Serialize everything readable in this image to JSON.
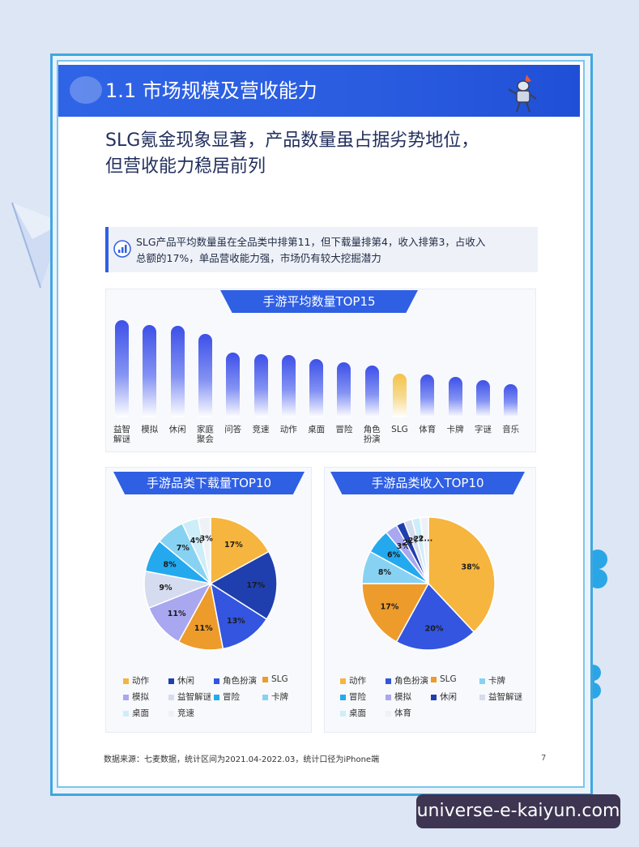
{
  "header": {
    "title": "1.1 市场规模及营收能力"
  },
  "headline": {
    "line1": "SLG氪金现象显著，产品数量虽占据劣势地位，",
    "line2": "但营收能力稳居前列"
  },
  "callout": {
    "line1": "SLG产品平均数量虽在全品类中排第11，但下载量排第4，收入排第3，占收入",
    "line2": "总额的17%，单品营收能力强，市场仍有较大挖掘潜力"
  },
  "colors": {
    "primary": "#2f5fe3",
    "highlight": "#f3c248"
  },
  "chart_data": [
    {
      "type": "bar",
      "title": "手游平均数量TOP15",
      "categories": [
        "益智\n解谜",
        "模拟",
        "休闲",
        "家庭\n聚会",
        "问答",
        "竞速",
        "动作",
        "桌面",
        "冒险",
        "角色\n扮演",
        "SLG",
        "体育",
        "卡牌",
        "字谜",
        "音乐"
      ],
      "values": [
        100,
        95,
        94,
        86,
        67,
        65,
        64,
        60,
        57,
        53,
        45,
        44,
        42,
        38,
        34
      ],
      "highlight": "SLG"
    },
    {
      "type": "pie",
      "title": "手游品类下载量TOP10",
      "slices": [
        {
          "name": "动作",
          "value": 17,
          "label": "17%",
          "color": "#f5b53e"
        },
        {
          "name": "休闲",
          "value": 17,
          "label": "17%",
          "color": "#1f3fae"
        },
        {
          "name": "角色扮演",
          "value": 13,
          "label": "13%",
          "color": "#3355e0"
        },
        {
          "name": "SLG",
          "value": 11,
          "label": "11%",
          "color": "#ed9b2b"
        },
        {
          "name": "模拟",
          "value": 11,
          "label": "11%",
          "color": "#a9a7f0"
        },
        {
          "name": "益智解谜",
          "value": 9,
          "label": "9%",
          "color": "#d5dcef"
        },
        {
          "name": "冒险",
          "value": 8,
          "label": "8%",
          "color": "#25a9ee"
        },
        {
          "name": "卡牌",
          "value": 7,
          "label": "7%",
          "color": "#87d2f3"
        },
        {
          "name": "桌面",
          "value": 4,
          "label": "4%",
          "color": "#cdeef9"
        },
        {
          "name": "竞速",
          "value": 3,
          "label": "3%",
          "color": "#eef1f6"
        }
      ]
    },
    {
      "type": "pie",
      "title": "手游品类收入TOP10",
      "slices": [
        {
          "name": "动作",
          "value": 38,
          "label": "38%",
          "color": "#f5b53e"
        },
        {
          "name": "角色扮演",
          "value": 20,
          "label": "20%",
          "color": "#3355e0"
        },
        {
          "name": "SLG",
          "value": 17,
          "label": "17%",
          "color": "#ed9b2b"
        },
        {
          "name": "卡牌",
          "value": 8,
          "label": "8%",
          "color": "#87d2f3"
        },
        {
          "name": "冒险",
          "value": 6,
          "label": "6%",
          "color": "#25a9ee"
        },
        {
          "name": "模拟",
          "value": 3,
          "label": "3%",
          "color": "#a9a7f0"
        },
        {
          "name": "休闲",
          "value": 2,
          "label": "2%",
          "color": "#1f3fae"
        },
        {
          "name": "益智解谜",
          "value": 2,
          "label": "2%",
          "color": "#d5dcef"
        },
        {
          "name": "桌面",
          "value": 2,
          "label": "2%",
          "color": "#cdeef9"
        },
        {
          "name": "体育",
          "value": 2,
          "label": "2...",
          "color": "#eef1f6"
        }
      ]
    }
  ],
  "legend_download": [
    {
      "name": "动作",
      "color": "#f5b53e"
    },
    {
      "name": "休闲",
      "color": "#1f3fae"
    },
    {
      "name": "角色扮演",
      "color": "#3355e0"
    },
    {
      "name": "SLG",
      "color": "#ed9b2b"
    },
    {
      "name": "模拟",
      "color": "#a9a7f0"
    },
    {
      "name": "益智解谜",
      "color": "#d5dcef"
    },
    {
      "name": "冒险",
      "color": "#25a9ee"
    },
    {
      "name": "卡牌",
      "color": "#87d2f3"
    },
    {
      "name": "桌面",
      "color": "#cdeef9"
    },
    {
      "name": "竞速",
      "color": "#eef1f6"
    }
  ],
  "legend_revenue": [
    {
      "name": "动作",
      "color": "#f5b53e"
    },
    {
      "name": "角色扮演",
      "color": "#3355e0"
    },
    {
      "name": "SLG",
      "color": "#ed9b2b"
    },
    {
      "name": "卡牌",
      "color": "#87d2f3"
    },
    {
      "name": "冒险",
      "color": "#25a9ee"
    },
    {
      "name": "模拟",
      "color": "#a9a7f0"
    },
    {
      "name": "休闲",
      "color": "#1f3fae"
    },
    {
      "name": "益智解谜",
      "color": "#d5dcef"
    },
    {
      "name": "桌面",
      "color": "#cdeef9"
    },
    {
      "name": "体育",
      "color": "#eef1f6"
    }
  ],
  "footnote": "数据来源：七麦数据，统计区间为2021.04-2022.03，统计口径为iPhone端",
  "page_number": "7",
  "watermark": "universe-e-kaiyun.com"
}
